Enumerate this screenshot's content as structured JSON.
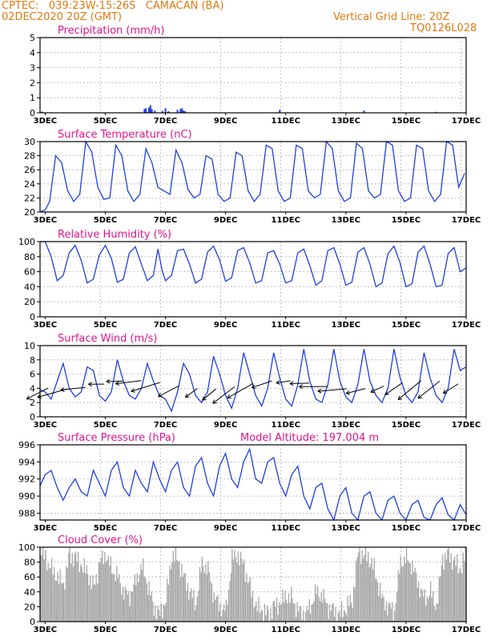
{
  "header": {
    "station_line": "CPTEC:   039:23W-15:26S   CAMACAN (BA)",
    "date_line": "02DEC2020 20Z (GMT)",
    "grid_line": "Vertical Grid Line: 20Z",
    "code_line": "TQ0126L028"
  },
  "colors": {
    "header": "#e07a10",
    "title": "#e0148c",
    "series": "#1f3fe0",
    "cloud": "#a8a8a8",
    "grid": "#9a9a9a"
  },
  "x_ticks": [
    "3DEC",
    "5DEC",
    "7DEC",
    "9DEC",
    "11DEC",
    "13DEC",
    "15DEC",
    "17DEC"
  ],
  "chart_data": [
    {
      "id": "precip",
      "type": "bar",
      "title": "Precipitation (mm/h)",
      "ylim": [
        0,
        5
      ],
      "yticks": [
        "0",
        "1",
        "2",
        "3",
        "4",
        "5"
      ],
      "x_unit": "day",
      "xlim": [
        2.83,
        17.0
      ],
      "x": [
        2.9,
        6.3,
        6.35,
        6.45,
        6.5,
        6.55,
        6.65,
        6.9,
        7.0,
        7.1,
        7.4,
        7.5,
        7.55,
        7.6,
        7.65,
        10.8,
        13.6,
        16.0
      ],
      "values": [
        0.08,
        0.25,
        0.3,
        0.35,
        0.5,
        0.25,
        0.15,
        0.12,
        0.3,
        0.1,
        0.2,
        0.25,
        0.3,
        0.15,
        0.1,
        0.2,
        0.15,
        0.06
      ]
    },
    {
      "id": "temp",
      "type": "line",
      "title": "Surface Temperature (nC)",
      "ylim": [
        20,
        30
      ],
      "yticks": [
        "20",
        "22",
        "24",
        "26",
        "28",
        "30"
      ],
      "x_unit": "day",
      "xlim": [
        2.83,
        17.0
      ],
      "x": [
        2.83,
        3.0,
        3.15,
        3.35,
        3.55,
        3.75,
        3.95,
        4.15,
        4.35,
        4.55,
        4.75,
        4.95,
        5.15,
        5.35,
        5.55,
        5.75,
        5.95,
        6.15,
        6.35,
        6.55,
        6.75,
        6.95,
        7.15,
        7.35,
        7.55,
        7.75,
        7.95,
        8.15,
        8.35,
        8.55,
        8.75,
        8.95,
        9.15,
        9.35,
        9.55,
        9.75,
        9.95,
        10.15,
        10.35,
        10.55,
        10.75,
        10.95,
        11.15,
        11.35,
        11.55,
        11.75,
        11.95,
        12.15,
        12.35,
        12.55,
        12.75,
        12.95,
        13.15,
        13.35,
        13.55,
        13.75,
        13.95,
        14.15,
        14.35,
        14.55,
        14.75,
        14.95,
        15.15,
        15.35,
        15.55,
        15.75,
        15.95,
        16.15,
        16.35,
        16.55,
        16.75,
        16.95
      ],
      "values": [
        20.0,
        20.3,
        21.5,
        28.0,
        27.0,
        23.0,
        21.5,
        22.5,
        30.0,
        28.5,
        23.5,
        21.8,
        22.0,
        29.5,
        28.0,
        23.0,
        21.5,
        22.5,
        29.0,
        27.0,
        23.5,
        23.0,
        22.5,
        28.8,
        27.0,
        23.2,
        22.0,
        22.5,
        28.0,
        27.5,
        22.5,
        21.5,
        22.0,
        28.5,
        28.0,
        23.0,
        21.5,
        22.5,
        29.5,
        29.0,
        23.0,
        21.5,
        22.0,
        29.5,
        29.0,
        23.0,
        22.0,
        22.5,
        30.0,
        29.0,
        23.0,
        21.5,
        22.0,
        29.8,
        29.0,
        23.0,
        22.0,
        22.5,
        30.0,
        29.5,
        23.0,
        21.5,
        22.0,
        29.5,
        29.0,
        23.0,
        21.5,
        22.5,
        30.0,
        29.5,
        23.5,
        25.5
      ]
    },
    {
      "id": "rh",
      "type": "line",
      "title": "Relative Humidity (%)",
      "ylim": [
        0,
        100
      ],
      "yticks": [
        "0",
        "20",
        "40",
        "60",
        "80",
        "100"
      ],
      "x_unit": "day",
      "xlim": [
        2.83,
        17.0
      ],
      "x": [
        2.83,
        3.0,
        3.2,
        3.4,
        3.6,
        3.8,
        4.0,
        4.2,
        4.4,
        4.6,
        4.8,
        5.0,
        5.2,
        5.4,
        5.6,
        5.8,
        6.0,
        6.2,
        6.4,
        6.6,
        6.75,
        6.9,
        7.0,
        7.2,
        7.4,
        7.6,
        7.8,
        8.0,
        8.2,
        8.4,
        8.6,
        8.8,
        9.0,
        9.2,
        9.4,
        9.6,
        9.8,
        10.0,
        10.2,
        10.4,
        10.6,
        10.8,
        11.0,
        11.2,
        11.4,
        11.6,
        11.8,
        12.0,
        12.2,
        12.4,
        12.6,
        12.8,
        13.0,
        13.2,
        13.4,
        13.6,
        13.8,
        14.0,
        14.2,
        14.4,
        14.6,
        14.8,
        15.0,
        15.2,
        15.4,
        15.6,
        15.8,
        16.0,
        16.2,
        16.4,
        16.6,
        16.8,
        17.0
      ],
      "values": [
        100,
        100,
        80,
        48,
        55,
        85,
        95,
        75,
        45,
        50,
        82,
        95,
        78,
        46,
        50,
        85,
        93,
        70,
        48,
        55,
        90,
        60,
        48,
        55,
        88,
        90,
        70,
        45,
        50,
        86,
        94,
        76,
        47,
        52,
        88,
        92,
        72,
        45,
        48,
        85,
        88,
        70,
        45,
        48,
        85,
        90,
        68,
        42,
        48,
        88,
        92,
        70,
        42,
        46,
        86,
        92,
        70,
        40,
        45,
        84,
        94,
        72,
        40,
        44,
        86,
        94,
        70,
        40,
        42,
        84,
        92,
        60,
        65
      ]
    },
    {
      "id": "wind",
      "type": "line",
      "title": "Surface Wind (m/s)",
      "ylim": [
        0,
        10
      ],
      "yticks": [
        "0",
        "2",
        "4",
        "6",
        "8",
        "10"
      ],
      "x_unit": "day",
      "xlim": [
        2.83,
        17.0
      ],
      "x": [
        2.83,
        3.0,
        3.2,
        3.4,
        3.6,
        3.8,
        4.0,
        4.2,
        4.4,
        4.6,
        4.8,
        5.0,
        5.2,
        5.4,
        5.6,
        5.8,
        6.0,
        6.2,
        6.4,
        6.6,
        6.8,
        7.0,
        7.2,
        7.4,
        7.6,
        7.8,
        8.0,
        8.2,
        8.4,
        8.6,
        8.8,
        9.0,
        9.2,
        9.4,
        9.6,
        9.8,
        10.0,
        10.2,
        10.4,
        10.6,
        10.8,
        11.0,
        11.2,
        11.4,
        11.6,
        11.8,
        12.0,
        12.2,
        12.4,
        12.6,
        12.8,
        13.0,
        13.2,
        13.4,
        13.6,
        13.8,
        14.0,
        14.2,
        14.4,
        14.6,
        14.8,
        15.0,
        15.2,
        15.4,
        15.6,
        15.8,
        16.0,
        16.2,
        16.4,
        16.6,
        16.8,
        17.0
      ],
      "values": [
        3.8,
        3.5,
        2.5,
        5.0,
        7.5,
        4.0,
        2.8,
        3.5,
        7.0,
        6.5,
        3.0,
        2.2,
        3.5,
        8.0,
        5.0,
        3.0,
        2.5,
        4.0,
        7.5,
        5.0,
        3.0,
        2.5,
        0.8,
        3.5,
        7.5,
        6.0,
        3.0,
        2.0,
        3.5,
        8.5,
        6.0,
        3.0,
        1.2,
        4.0,
        9.0,
        6.0,
        3.0,
        1.5,
        4.0,
        9.0,
        5.5,
        2.5,
        1.5,
        4.5,
        9.5,
        5.0,
        2.5,
        2.0,
        4.5,
        9.5,
        5.0,
        2.8,
        2.0,
        4.5,
        9.5,
        5.0,
        3.0,
        2.0,
        4.0,
        9.5,
        5.5,
        3.0,
        2.0,
        3.5,
        9.0,
        5.5,
        3.0,
        2.0,
        4.0,
        9.5,
        6.5,
        7.0
      ]
    },
    {
      "id": "pres",
      "type": "line",
      "title": "Surface Pressure (hPa)",
      "annotation": "Model Altitude: 197.004 m",
      "ylim": [
        987.2,
        996
      ],
      "yticks": [
        "988",
        "990",
        "992",
        "994",
        "996"
      ],
      "x_unit": "day",
      "xlim": [
        2.83,
        17.0
      ],
      "x": [
        2.83,
        3.0,
        3.2,
        3.4,
        3.6,
        3.8,
        4.0,
        4.2,
        4.4,
        4.6,
        4.8,
        5.0,
        5.2,
        5.4,
        5.6,
        5.8,
        6.0,
        6.2,
        6.4,
        6.6,
        6.8,
        7.0,
        7.2,
        7.4,
        7.6,
        7.8,
        8.0,
        8.2,
        8.4,
        8.6,
        8.8,
        9.0,
        9.2,
        9.4,
        9.6,
        9.8,
        10.0,
        10.2,
        10.4,
        10.6,
        10.8,
        11.0,
        11.2,
        11.4,
        11.6,
        11.8,
        12.0,
        12.2,
        12.4,
        12.6,
        12.8,
        13.0,
        13.2,
        13.4,
        13.6,
        13.8,
        14.0,
        14.2,
        14.4,
        14.6,
        14.8,
        15.0,
        15.2,
        15.4,
        15.6,
        15.8,
        16.0,
        16.2,
        16.4,
        16.6,
        16.8,
        17.0
      ],
      "values": [
        991.2,
        992.5,
        993.0,
        991.0,
        989.5,
        991.0,
        992.0,
        990.5,
        990.0,
        993.0,
        991.5,
        990.0,
        993.0,
        994.0,
        991.0,
        990.0,
        993.0,
        991.5,
        990.5,
        994.0,
        992.0,
        990.5,
        993.0,
        994.0,
        991.0,
        990.0,
        993.5,
        994.5,
        991.5,
        990.0,
        993.5,
        995.0,
        992.0,
        991.0,
        994.0,
        995.5,
        992.0,
        991.5,
        994.0,
        994.5,
        991.5,
        990.0,
        992.5,
        993.5,
        990.0,
        988.5,
        991.0,
        991.5,
        988.5,
        987.2,
        990.0,
        991.0,
        988.0,
        987.2,
        990.0,
        990.5,
        988.0,
        987.2,
        989.5,
        990.0,
        988.0,
        987.2,
        989.0,
        989.5,
        987.5,
        987.2,
        989.0,
        989.8,
        987.8,
        987.2,
        989.0,
        987.8
      ]
    },
    {
      "id": "cloud",
      "type": "area",
      "title": "Cloud Cover (%)",
      "ylim": [
        0,
        100
      ],
      "yticks": [
        "0",
        "20",
        "40",
        "60",
        "80",
        "100"
      ],
      "x_unit": "day",
      "xlim": [
        2.83,
        17.0
      ],
      "x": [
        2.83,
        3.0,
        3.2,
        3.4,
        3.6,
        3.8,
        4.0,
        4.2,
        4.4,
        4.6,
        4.8,
        5.0,
        5.2,
        5.4,
        5.6,
        5.8,
        6.0,
        6.2,
        6.4,
        6.6,
        6.8,
        7.0,
        7.2,
        7.4,
        7.6,
        7.8,
        8.0,
        8.2,
        8.4,
        8.6,
        8.8,
        9.0,
        9.2,
        9.4,
        9.6,
        9.8,
        10.0,
        10.2,
        10.4,
        10.6,
        10.8,
        11.0,
        11.2,
        11.4,
        11.6,
        11.8,
        12.0,
        12.2,
        12.4,
        12.6,
        12.8,
        13.0,
        13.2,
        13.4,
        13.6,
        13.8,
        14.0,
        14.2,
        14.4,
        14.6,
        14.8,
        15.0,
        15.2,
        15.4,
        15.6,
        15.8,
        16.0,
        16.2,
        16.4,
        16.6,
        16.8,
        17.0
      ],
      "values": [
        95,
        85,
        70,
        60,
        50,
        90,
        85,
        75,
        65,
        45,
        80,
        90,
        70,
        60,
        40,
        35,
        55,
        75,
        50,
        20,
        10,
        30,
        90,
        85,
        60,
        40,
        25,
        80,
        70,
        35,
        20,
        15,
        85,
        90,
        75,
        45,
        20,
        15,
        10,
        20,
        25,
        35,
        30,
        15,
        10,
        20,
        40,
        35,
        20,
        15,
        10,
        20,
        30,
        95,
        90,
        85,
        60,
        30,
        20,
        15,
        80,
        85,
        75,
        50,
        30,
        40,
        20,
        85,
        90,
        80,
        70,
        95
      ]
    }
  ]
}
